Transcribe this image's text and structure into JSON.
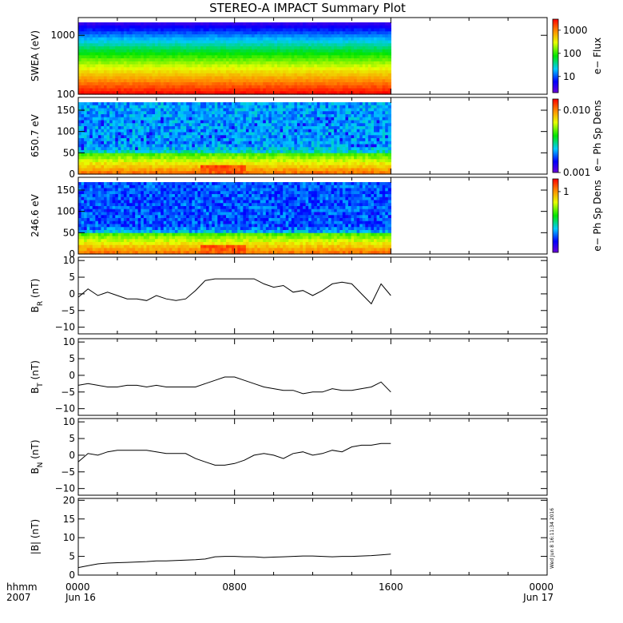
{
  "title": "STEREO-A IMPACT Summary Plot",
  "time_axis": {
    "row1_label": "hhmm",
    "row2_label": "2007",
    "ticks": [
      {
        "hour": 0,
        "time": "0000",
        "date": "Jun 16"
      },
      {
        "hour": 8,
        "time": "0800",
        "date": ""
      },
      {
        "hour": 16,
        "time": "1600",
        "date": ""
      },
      {
        "hour": 24,
        "time": "0000",
        "date": "Jun 17"
      }
    ]
  },
  "timestamp": "Wed Jun  8 16:11:34 2016",
  "colors": {
    "trace": "#000000",
    "frame": "#000000",
    "background": "#ffffff"
  },
  "chart_data": [
    {
      "type": "heatmap",
      "panel": "swea",
      "ylabel": "SWEA (eV)",
      "yscale": "log",
      "ylim": [
        100,
        2000
      ],
      "yticks": [
        "100",
        "1000"
      ],
      "xlim": [
        0,
        24
      ],
      "data_xrange": [
        0,
        16
      ],
      "colorbar": {
        "label": "e− Flux",
        "scale": "log",
        "range": [
          2,
          3000
        ],
        "ticks": [
          "10",
          "100",
          "1000"
        ]
      },
      "description_levels": [
        {
          "energy_eV": 1800,
          "level": 0.08
        },
        {
          "energy_eV": 1000,
          "level": 0.22
        },
        {
          "energy_eV": 600,
          "level": 0.42
        },
        {
          "energy_eV": 400,
          "level": 0.58
        },
        {
          "energy_eV": 250,
          "level": 0.75
        },
        {
          "energy_eV": 150,
          "level": 0.88
        },
        {
          "energy_eV": 100,
          "level": 0.95
        }
      ]
    },
    {
      "type": "heatmap",
      "panel": "pad650",
      "ylabel": "650.7 eV",
      "ylim": [
        0,
        180
      ],
      "yticks": [
        "0",
        "50",
        "100",
        "150"
      ],
      "xlim": [
        0,
        24
      ],
      "data_xrange": [
        0,
        16
      ],
      "colorbar": {
        "label": "e− Ph Sp Dens",
        "scale": "log",
        "range": [
          0.001,
          0.015
        ],
        "ticks": [
          "0.001",
          "0.010"
        ]
      },
      "strahl_interval_hours": [
        6.3,
        8.6
      ]
    },
    {
      "type": "heatmap",
      "panel": "pad246",
      "ylabel": "246.6 eV",
      "ylim": [
        0,
        180
      ],
      "yticks": [
        "0",
        "50",
        "100",
        "150"
      ],
      "xlim": [
        0,
        24
      ],
      "data_xrange": [
        0,
        16
      ],
      "colorbar": {
        "label": "e− Ph Sp Dens",
        "scale": "log",
        "range": [
          0.2,
          1.4
        ],
        "ticks": [
          "1"
        ]
      },
      "strahl_interval_hours": [
        6.3,
        8.6
      ]
    },
    {
      "type": "line",
      "panel": "br",
      "ylabel": "B",
      "ylabel_sub": "R",
      "ylabel_unit": " (nT)",
      "ylim": [
        -12,
        11
      ],
      "yticks": [
        "−10",
        "−5",
        "0",
        "5",
        "10"
      ],
      "xlim": [
        0,
        24
      ],
      "x": [
        0,
        0.5,
        1,
        1.5,
        2,
        2.5,
        3,
        3.5,
        4,
        4.5,
        5,
        5.5,
        6,
        6.5,
        7,
        7.5,
        8,
        8.5,
        9,
        9.5,
        10,
        10.5,
        11,
        11.5,
        12,
        12.5,
        13,
        13.5,
        14,
        14.5,
        15,
        15.5,
        16
      ],
      "values": [
        -1,
        1.5,
        -0.5,
        0.5,
        -0.5,
        -1.5,
        -1.5,
        -2,
        -0.5,
        -1.5,
        -2,
        -1.5,
        1,
        4,
        4.5,
        4.5,
        4.5,
        4.5,
        4.5,
        3,
        2,
        2.5,
        0.5,
        1,
        -0.5,
        1,
        3,
        3.5,
        3,
        0,
        -3,
        3,
        -0.5
      ]
    },
    {
      "type": "line",
      "panel": "bt",
      "ylabel": "B",
      "ylabel_sub": "T",
      "ylabel_unit": " (nT)",
      "ylim": [
        -12,
        11
      ],
      "yticks": [
        "−10",
        "−5",
        "0",
        "5",
        "10"
      ],
      "xlim": [
        0,
        24
      ],
      "x": [
        0,
        0.5,
        1,
        1.5,
        2,
        2.5,
        3,
        3.5,
        4,
        4.5,
        5,
        5.5,
        6,
        6.5,
        7,
        7.5,
        8,
        8.5,
        9,
        9.5,
        10,
        10.5,
        11,
        11.5,
        12,
        12.5,
        13,
        13.5,
        14,
        14.5,
        15,
        15.5,
        16
      ],
      "values": [
        -3,
        -2.5,
        -3,
        -3.5,
        -3.5,
        -3,
        -3,
        -3.5,
        -3,
        -3.5,
        -3.5,
        -3.5,
        -3.5,
        -2.5,
        -1.5,
        -0.5,
        -0.5,
        -1.5,
        -2.5,
        -3.5,
        -4,
        -4.5,
        -4.5,
        -5.5,
        -5,
        -5,
        -4,
        -4.5,
        -4.5,
        -4,
        -3.5,
        -2,
        -5
      ]
    },
    {
      "type": "line",
      "panel": "bn",
      "ylabel": "B",
      "ylabel_sub": "N",
      "ylabel_unit": " (nT)",
      "ylim": [
        -12,
        11
      ],
      "yticks": [
        "−10",
        "−5",
        "0",
        "5",
        "10"
      ],
      "xlim": [
        0,
        24
      ],
      "x": [
        0,
        0.5,
        1,
        1.5,
        2,
        2.5,
        3,
        3.5,
        4,
        4.5,
        5,
        5.5,
        6,
        6.5,
        7,
        7.5,
        8,
        8.5,
        9,
        9.5,
        10,
        10.5,
        11,
        11.5,
        12,
        12.5,
        13,
        13.5,
        14,
        14.5,
        15,
        15.5,
        16
      ],
      "values": [
        -2,
        0.5,
        0,
        1,
        1.5,
        1.5,
        1.5,
        1.5,
        1,
        0.5,
        0.5,
        0.5,
        -1,
        -2,
        -3,
        -3,
        -2.5,
        -1.5,
        0,
        0.5,
        0,
        -1,
        0.5,
        1,
        0,
        0.5,
        1.5,
        1,
        2.5,
        3,
        3,
        3.5,
        3.5
      ]
    },
    {
      "type": "line",
      "panel": "bmag",
      "ylabel": "|B| (nT)",
      "ylim": [
        0,
        20.5
      ],
      "yticks": [
        "0",
        "5",
        "10",
        "15",
        "20"
      ],
      "xlim": [
        0,
        24
      ],
      "x": [
        0,
        0.5,
        1,
        1.5,
        2,
        2.5,
        3,
        3.5,
        4,
        4.5,
        5,
        5.5,
        6,
        6.5,
        7,
        7.5,
        8,
        8.5,
        9,
        9.5,
        10,
        10.5,
        11,
        11.5,
        12,
        12.5,
        13,
        13.5,
        14,
        14.5,
        15,
        15.5,
        16
      ],
      "values": [
        2,
        2.5,
        3,
        3.2,
        3.3,
        3.4,
        3.5,
        3.6,
        3.8,
        3.8,
        3.9,
        4,
        4.1,
        4.3,
        4.9,
        5,
        5,
        4.9,
        4.9,
        4.7,
        4.8,
        4.9,
        5,
        5.1,
        5.1,
        5,
        4.9,
        5,
        5,
        5.1,
        5.2,
        5.4,
        5.6
      ]
    }
  ]
}
